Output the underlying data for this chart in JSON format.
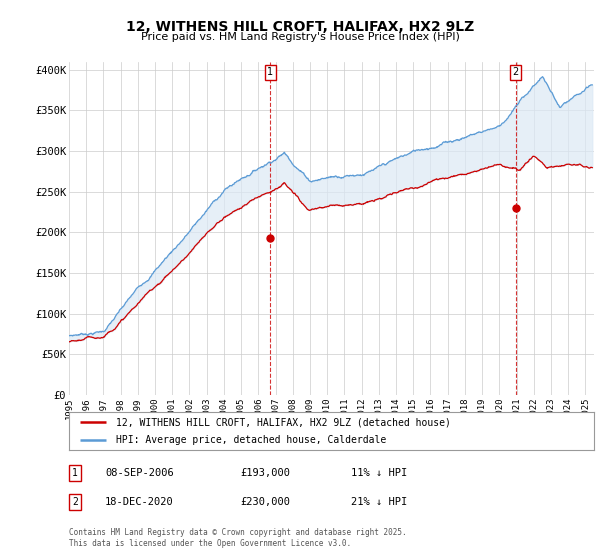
{
  "title": "12, WITHENS HILL CROFT, HALIFAX, HX2 9LZ",
  "subtitle": "Price paid vs. HM Land Registry's House Price Index (HPI)",
  "ylabel_ticks": [
    "£0",
    "£50K",
    "£100K",
    "£150K",
    "£200K",
    "£250K",
    "£300K",
    "£350K",
    "£400K"
  ],
  "ytick_values": [
    0,
    50000,
    100000,
    150000,
    200000,
    250000,
    300000,
    350000,
    400000
  ],
  "ylim": [
    0,
    410000
  ],
  "xlim_start": 1995.0,
  "xlim_end": 2025.5,
  "red_color": "#cc0000",
  "blue_color": "#5b9bd5",
  "fill_color": "#dce9f5",
  "marker1_x": 2006.69,
  "marker1_y": 193000,
  "marker2_x": 2020.96,
  "marker2_y": 230000,
  "annotation1": [
    "1",
    "08-SEP-2006",
    "£193,000",
    "11% ↓ HPI"
  ],
  "annotation2": [
    "2",
    "18-DEC-2020",
    "£230,000",
    "21% ↓ HPI"
  ],
  "legend_line1": "12, WITHENS HILL CROFT, HALIFAX, HX2 9LZ (detached house)",
  "legend_line2": "HPI: Average price, detached house, Calderdale",
  "footer": "Contains HM Land Registry data © Crown copyright and database right 2025.\nThis data is licensed under the Open Government Licence v3.0.",
  "background_color": "#ffffff"
}
